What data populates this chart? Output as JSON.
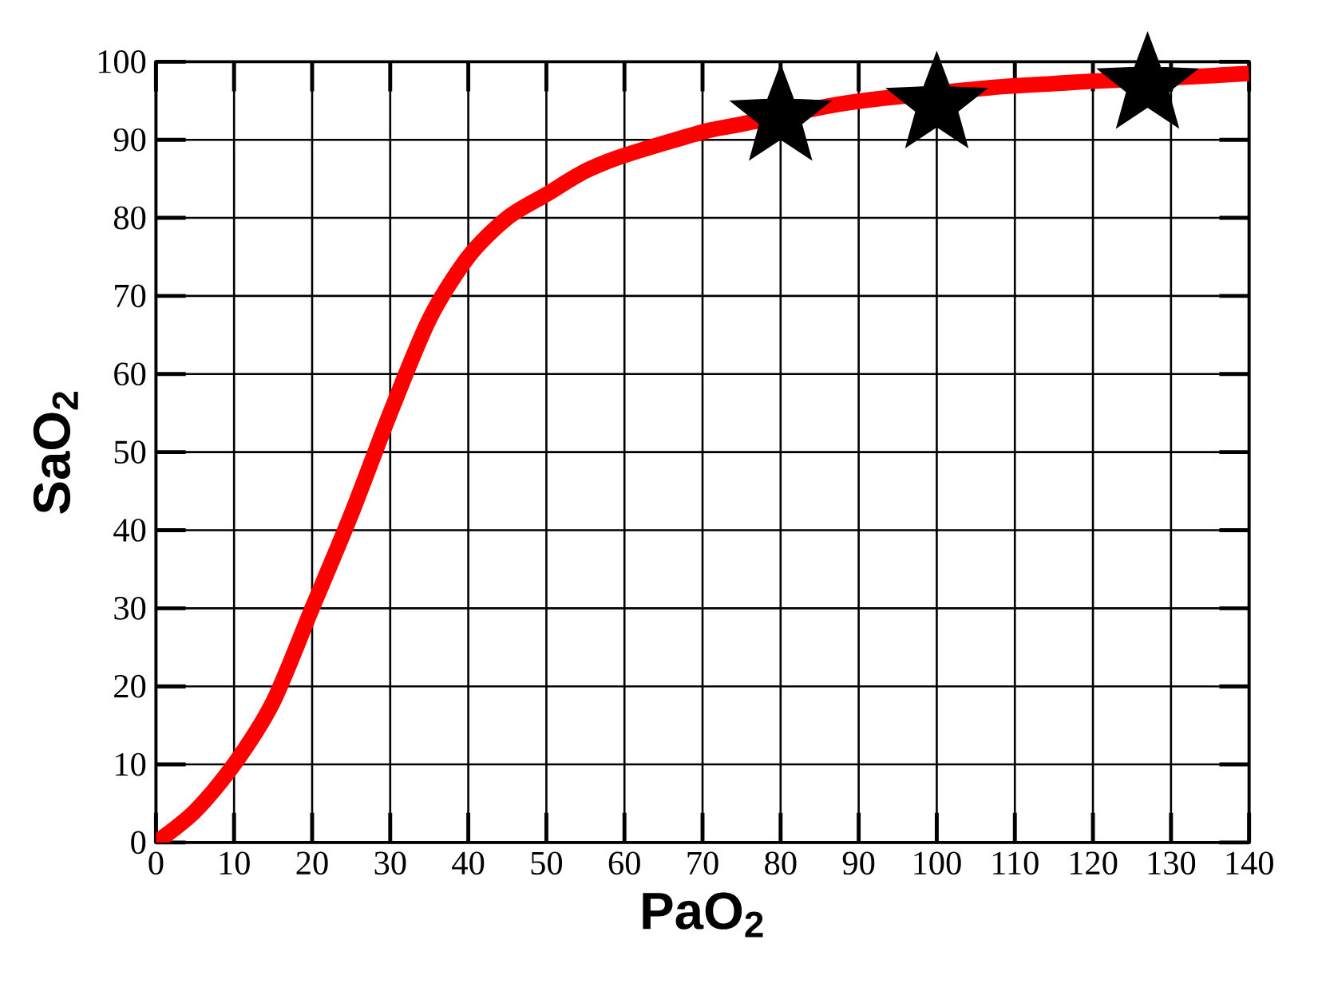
{
  "chart_data": {
    "type": "line",
    "xlabel": "**PaO$_{2}$**",
    "ylabel": "**SaO$_{2}$**",
    "xlim": [
      0,
      140
    ],
    "ylim": [
      0,
      100
    ],
    "xticks": [
      0,
      10,
      20,
      30,
      40,
      50,
      60,
      70,
      80,
      90,
      100,
      110,
      120,
      130,
      140
    ],
    "yticks": [
      0,
      10,
      20,
      30,
      40,
      50,
      60,
      70,
      80,
      90,
      100
    ],
    "grid": true,
    "series": [
      {
        "color": "#ff0000",
        "x": [
          0,
          5,
          10,
          15,
          20,
          25,
          30,
          35,
          40,
          45,
          50,
          55,
          60,
          70,
          75,
          86,
          93,
          107,
          115,
          120,
          133,
          140
        ],
        "values": [
          0,
          4,
          10,
          18,
          30,
          42,
          55,
          67,
          75,
          80,
          83,
          86,
          88,
          91,
          92,
          94.3,
          95.3,
          96.7,
          97.2,
          97.5,
          98.1,
          98.5
        ]
      },
      {
        "type": "scatter",
        "color": "#000000",
        "marker": "star",
        "x": [
          80,
          100,
          127
        ],
        "values": [
          92.9,
          94.5,
          97
        ]
      }
    ]
  }
}
